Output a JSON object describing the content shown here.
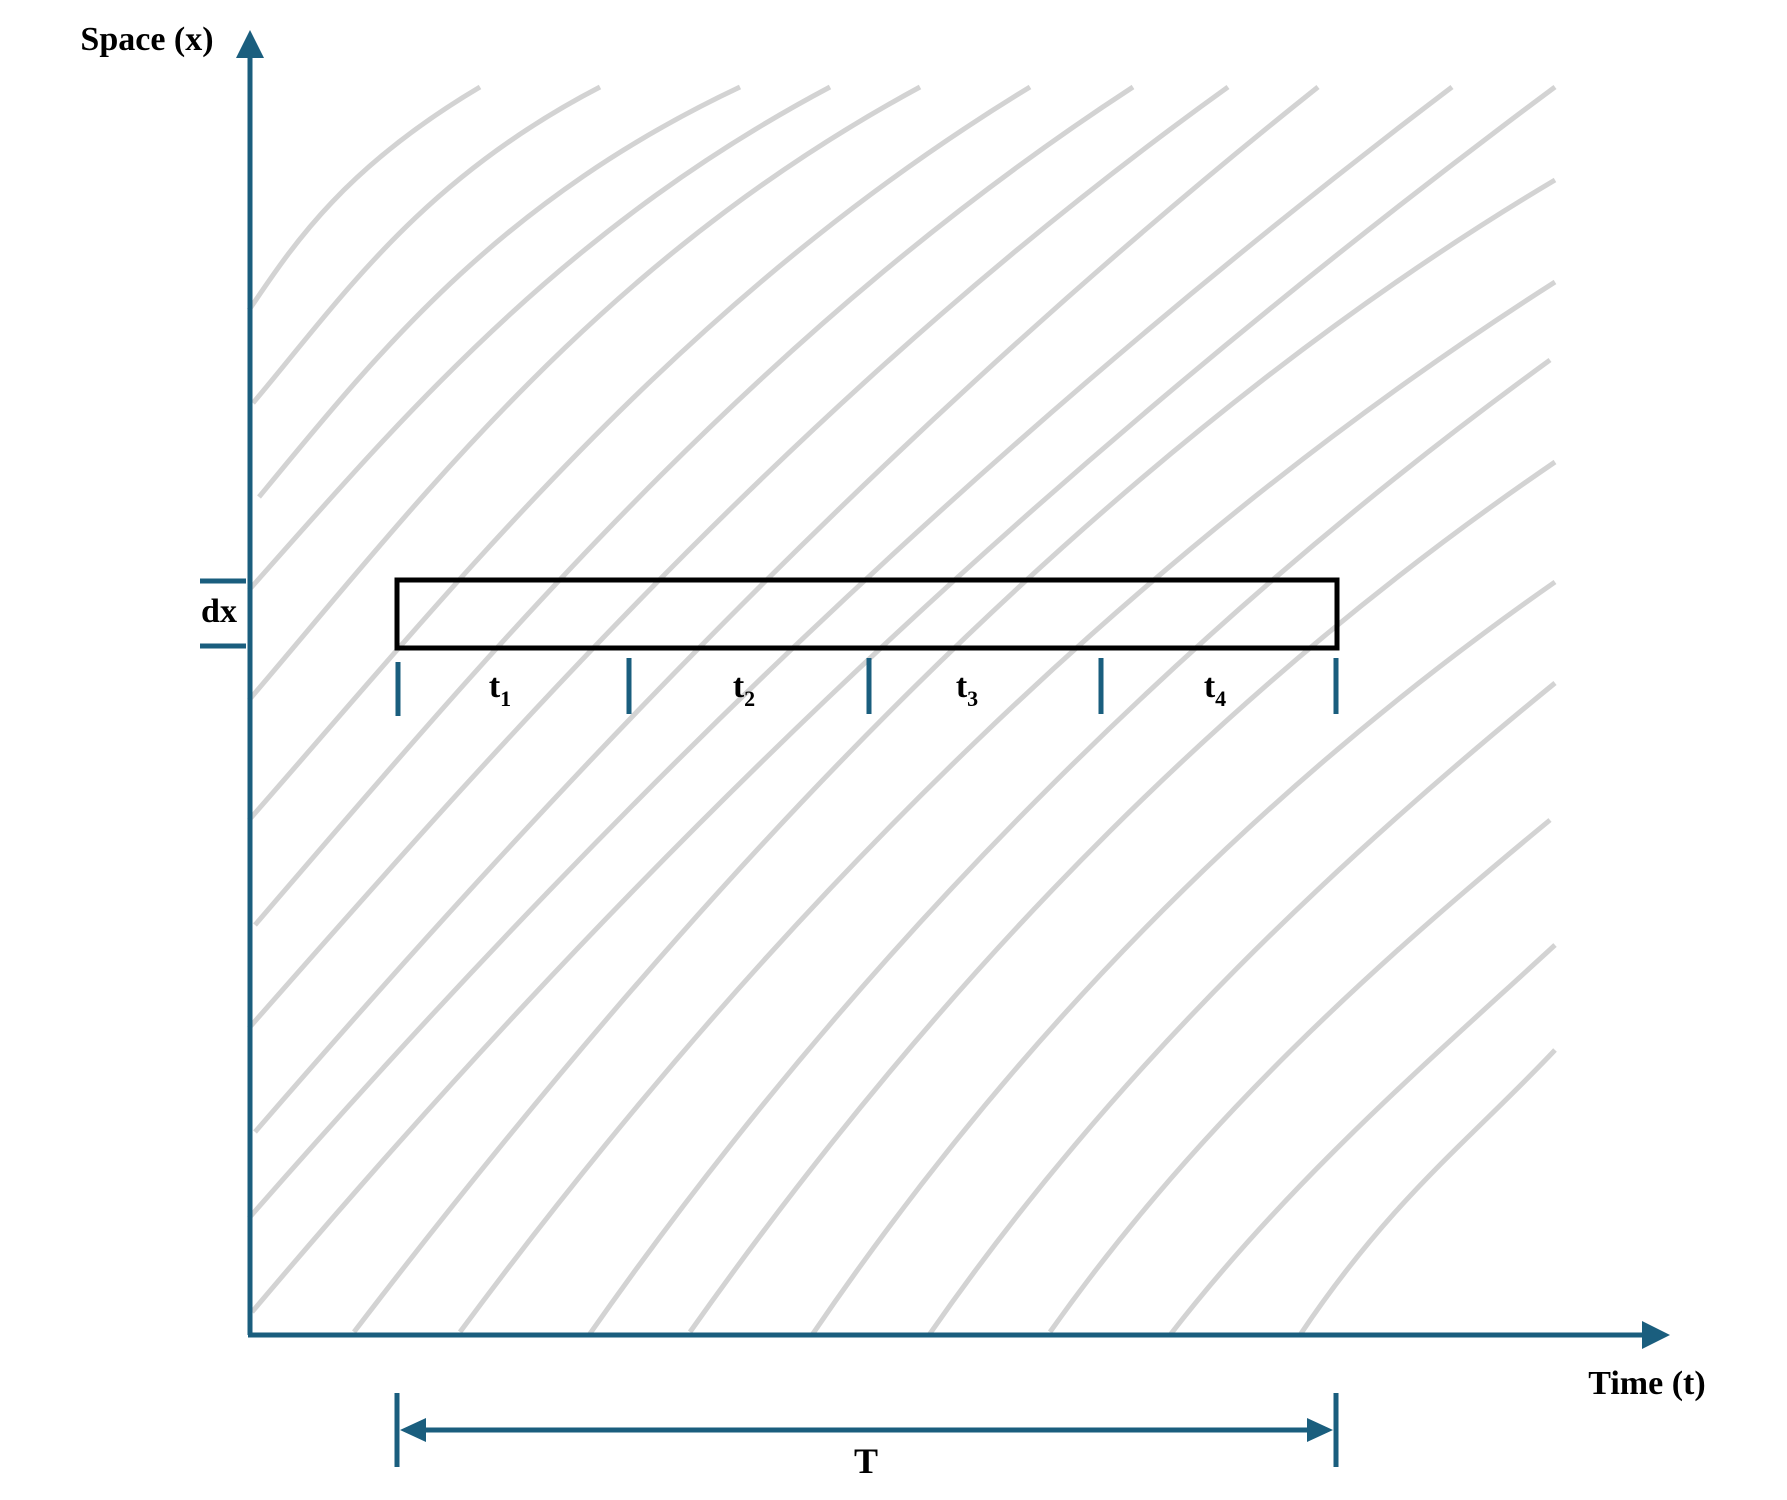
{
  "axes": {
    "y_label": "Space (x)",
    "x_label": "Time (t)"
  },
  "annotations": {
    "dx_label": "dx",
    "period_label": "T",
    "interval_prefix": "t",
    "intervals": [
      "1",
      "2",
      "3",
      "4"
    ]
  },
  "colors": {
    "axis": "#1a5e7e",
    "trajectory": "#d3d3d3",
    "box": "#000000",
    "text": "#000000"
  }
}
